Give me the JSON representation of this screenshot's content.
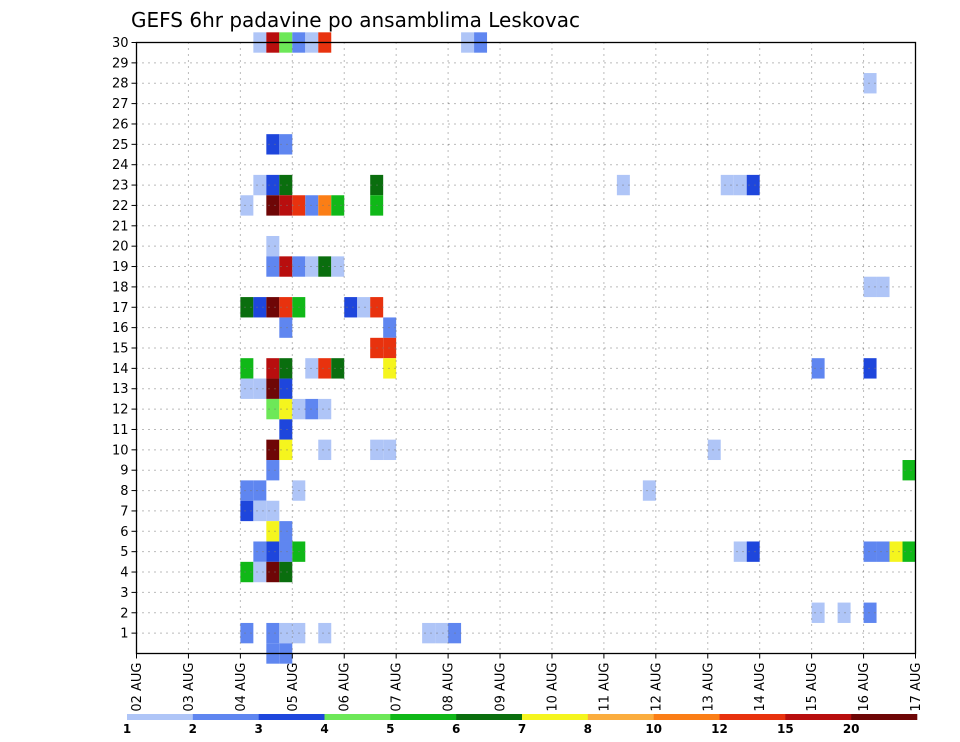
{
  "chart_data": {
    "type": "heatmap",
    "title": "GEFS 6hr padavine po ansamblima Leskovac",
    "xlabel": "",
    "ylabel": "",
    "x_tick_labels": [
      "02 AUG",
      "03 AUG",
      "04 AUG",
      "05 AUG",
      "06 AUG",
      "07 AUG",
      "08 AUG",
      "09 AUG",
      "10 AUG",
      "11 AUG",
      "12 AUG",
      "13 AUG",
      "14 AUG",
      "15 AUG",
      "16 AUG",
      "17 AUG"
    ],
    "x_steps_per_day": 4,
    "y_tick_labels": [
      "1",
      "2",
      "3",
      "4",
      "5",
      "6",
      "7",
      "8",
      "9",
      "10",
      "11",
      "12",
      "13",
      "14",
      "15",
      "16",
      "17",
      "18",
      "19",
      "20",
      "21",
      "22",
      "23",
      "24",
      "25",
      "26",
      "27",
      "28",
      "29",
      "30"
    ],
    "ylim": [
      0,
      30
    ],
    "grid": true,
    "colorbar": {
      "labels": [
        "1",
        "2",
        "3",
        "4",
        "5",
        "6",
        "7",
        "8",
        "10",
        "12",
        "15",
        "20"
      ],
      "colors": [
        "#afc5f7",
        "#5f86f0",
        "#1e46dc",
        "#6de858",
        "#10b818",
        "#0a6e0e",
        "#f5f51e",
        "#fbad3e",
        "#fb7e16",
        "#e8320e",
        "#b80e0e",
        "#6e0606"
      ]
    },
    "cells": [
      {
        "m": 30,
        "x": [
          [
            9,
            0
          ],
          [
            10,
            10
          ],
          [
            11,
            3
          ],
          [
            12,
            1
          ],
          [
            13,
            0
          ],
          [
            14,
            9
          ],
          [
            25,
            0
          ],
          [
            26,
            1
          ]
        ]
      },
      {
        "m": 28,
        "x": [
          [
            56,
            0
          ]
        ]
      },
      {
        "m": 25,
        "x": [
          [
            10,
            2
          ],
          [
            11,
            1
          ]
        ]
      },
      {
        "m": 23,
        "x": [
          [
            9,
            0
          ],
          [
            10,
            2
          ],
          [
            11,
            5
          ],
          [
            18,
            5
          ],
          [
            37,
            0
          ],
          [
            45,
            0
          ],
          [
            46,
            0
          ],
          [
            47,
            2
          ]
        ]
      },
      {
        "m": 22,
        "x": [
          [
            8,
            0
          ],
          [
            10,
            11
          ],
          [
            11,
            10
          ],
          [
            12,
            9
          ],
          [
            13,
            1
          ],
          [
            14,
            8
          ],
          [
            15,
            4
          ],
          [
            18,
            4
          ]
        ]
      },
      {
        "m": 20,
        "x": [
          [
            10,
            0
          ]
        ]
      },
      {
        "m": 19,
        "x": [
          [
            10,
            1
          ],
          [
            11,
            10
          ],
          [
            12,
            1
          ],
          [
            13,
            0
          ],
          [
            14,
            5
          ],
          [
            15,
            0
          ]
        ]
      },
      {
        "m": 18,
        "x": [
          [
            56,
            0
          ],
          [
            57,
            0
          ]
        ]
      },
      {
        "m": 17,
        "x": [
          [
            8,
            5
          ],
          [
            9,
            2
          ],
          [
            10,
            11
          ],
          [
            11,
            9
          ],
          [
            12,
            4
          ],
          [
            16,
            2
          ],
          [
            17,
            0
          ],
          [
            18,
            9
          ]
        ]
      },
      {
        "m": 16,
        "x": [
          [
            11,
            1
          ],
          [
            19,
            1
          ]
        ]
      },
      {
        "m": 15,
        "x": [
          [
            18,
            9
          ],
          [
            19,
            9
          ]
        ]
      },
      {
        "m": 14,
        "x": [
          [
            8,
            4
          ],
          [
            10,
            10
          ],
          [
            11,
            5
          ],
          [
            13,
            0
          ],
          [
            14,
            9
          ],
          [
            15,
            5
          ],
          [
            19,
            6
          ],
          [
            52,
            1
          ],
          [
            56,
            2
          ]
        ]
      },
      {
        "m": 13,
        "x": [
          [
            8,
            0
          ],
          [
            9,
            0
          ],
          [
            10,
            11
          ],
          [
            11,
            2
          ]
        ]
      },
      {
        "m": 12,
        "x": [
          [
            10,
            3
          ],
          [
            11,
            6
          ],
          [
            12,
            0
          ],
          [
            13,
            1
          ],
          [
            14,
            0
          ]
        ]
      },
      {
        "m": 11,
        "x": [
          [
            11,
            2
          ]
        ]
      },
      {
        "m": 10,
        "x": [
          [
            10,
            11
          ],
          [
            11,
            6
          ],
          [
            14,
            0
          ],
          [
            18,
            0
          ],
          [
            19,
            0
          ],
          [
            44,
            0
          ]
        ]
      },
      {
        "m": 9,
        "x": [
          [
            10,
            1
          ],
          [
            59,
            4
          ]
        ]
      },
      {
        "m": 8,
        "x": [
          [
            8,
            1
          ],
          [
            9,
            1
          ],
          [
            12,
            0
          ],
          [
            39,
            0
          ]
        ]
      },
      {
        "m": 7,
        "x": [
          [
            8,
            2
          ],
          [
            9,
            0
          ],
          [
            10,
            0
          ]
        ]
      },
      {
        "m": 6,
        "x": [
          [
            10,
            6
          ],
          [
            11,
            1
          ]
        ]
      },
      {
        "m": 5,
        "x": [
          [
            9,
            1
          ],
          [
            10,
            2
          ],
          [
            11,
            1
          ],
          [
            12,
            4
          ],
          [
            46,
            0
          ],
          [
            47,
            2
          ],
          [
            56,
            1
          ],
          [
            57,
            1
          ],
          [
            58,
            6
          ],
          [
            59,
            4
          ]
        ]
      },
      {
        "m": 4,
        "x": [
          [
            8,
            4
          ],
          [
            9,
            0
          ],
          [
            10,
            11
          ],
          [
            11,
            5
          ]
        ]
      },
      {
        "m": 2,
        "x": [
          [
            52,
            0
          ],
          [
            54,
            0
          ],
          [
            56,
            1
          ]
        ]
      },
      {
        "m": 1,
        "x": [
          [
            8,
            1
          ],
          [
            10,
            1
          ],
          [
            11,
            0
          ],
          [
            12,
            0
          ],
          [
            14,
            0
          ],
          [
            22,
            0
          ],
          [
            23,
            0
          ],
          [
            24,
            1
          ]
        ]
      },
      {
        "m": 0,
        "x": [
          [
            10,
            1
          ],
          [
            11,
            1
          ]
        ]
      }
    ]
  }
}
